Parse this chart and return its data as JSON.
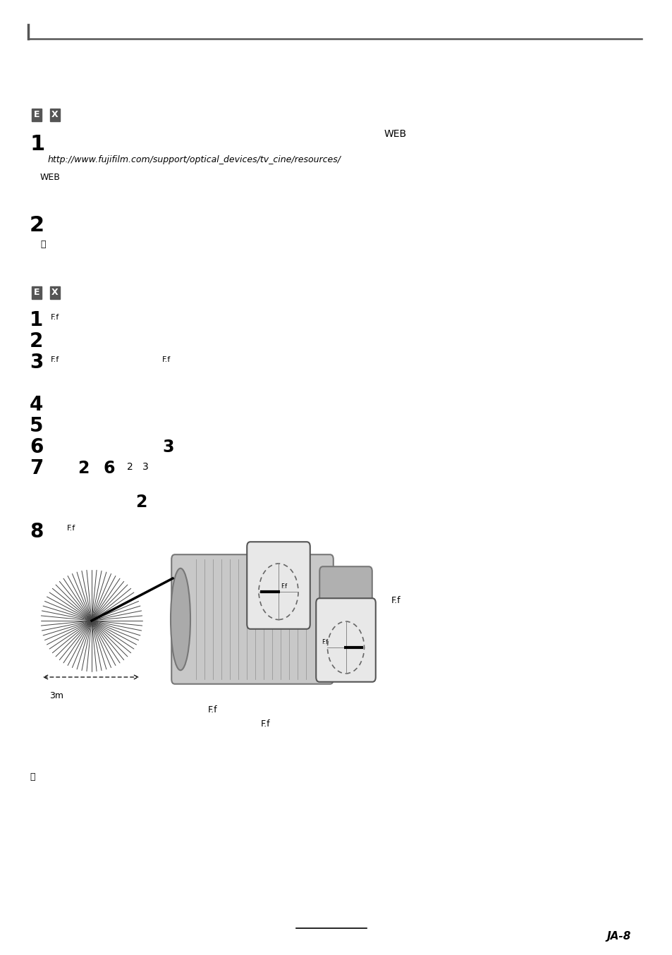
{
  "page_bg": "#ffffff",
  "top_bar_color": "#555555",
  "badge_bg": "#555555",
  "badge_text": "#ffffff",
  "page_num": "JA-8",
  "label_3m": "3m",
  "label_right_ff": "F.f",
  "bottom_icon": "ⓘ",
  "section1_url": "http://www.fujifilm.com/support/optical_devices/tv_cine/resources/",
  "figw": 9.54,
  "figh": 13.54,
  "dpi": 100
}
